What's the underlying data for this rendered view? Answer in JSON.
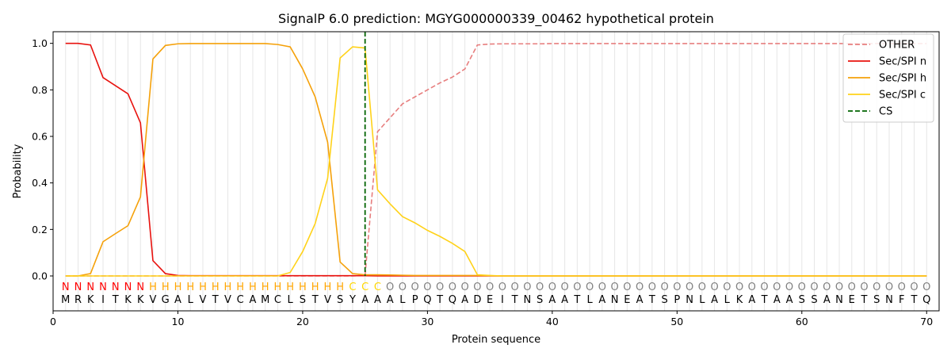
{
  "chart_data": {
    "type": "line",
    "title": "SignalP 6.0 prediction: MGYG000000339_00462 hypothetical protein",
    "xlabel": "Protein sequence",
    "ylabel": "Probability",
    "xlim": [
      0,
      71
    ],
    "ylim": [
      -0.15,
      1.05
    ],
    "x_ticks": [
      0,
      10,
      20,
      30,
      40,
      50,
      60,
      70
    ],
    "y_ticks": [
      0.0,
      0.2,
      0.4,
      0.6,
      0.8,
      1.0
    ],
    "y_tick_labels": [
      "0.0",
      "0.2",
      "0.4",
      "0.6",
      "0.8",
      "1.0"
    ],
    "sequence": "MRKITKKVGALVTVCAMCLSTVSYAAALPQTQADEITNSAATLANEATSPNLALKATAASSANETSNFTQ",
    "labels": "NNNNNNNHHHHHHHHHHHHHHHHCCCOOOOOOOOOOOOOOOOOOOOOOOOOOOOOOOOOOOOOOOOOOOOO",
    "label_colors": {
      "N": "#ff0000",
      "H": "#ffa500",
      "C": "#ffd700",
      "O": "#808080"
    },
    "cleavage_site": 25,
    "legend_position": "top-right",
    "grid": "vertical-lines",
    "series": [
      {
        "name": "OTHER",
        "color": "#e77e7e",
        "dash": "dashed",
        "values": [
          0,
          0,
          0,
          0,
          0,
          0,
          0,
          0,
          0,
          0,
          0,
          0,
          0,
          0,
          0,
          0,
          0,
          0,
          0,
          0,
          0,
          0,
          0,
          0,
          0.003,
          0.62,
          0.68,
          0.74,
          0.77,
          0.8,
          0.83,
          0.855,
          0.89,
          0.993,
          0.997,
          0.998,
          0.998,
          0.998,
          0.998,
          0.999,
          0.999,
          0.999,
          0.999,
          0.999,
          0.999,
          0.999,
          0.999,
          0.999,
          0.999,
          0.999,
          0.999,
          0.999,
          0.999,
          0.999,
          0.999,
          0.999,
          0.999,
          0.999,
          0.999,
          0.999,
          0.999,
          0.999,
          0.999,
          0.999,
          0.999,
          0.999,
          0.999,
          0.999,
          0.999,
          0.999
        ]
      },
      {
        "name": "Sec/SPI n",
        "color": "#e8120e",
        "dash": "solid",
        "values": [
          1.0,
          1.0,
          0.993,
          0.853,
          0.818,
          0.783,
          0.658,
          0.066,
          0.01,
          0.002,
          0.001,
          0.001,
          0.001,
          0.001,
          0.001,
          0.001,
          0.001,
          0.001,
          0.001,
          0.001,
          0.001,
          0.001,
          0.001,
          0.001,
          0.001,
          0,
          0,
          0,
          0,
          0,
          0,
          0,
          0,
          0,
          0,
          0,
          0,
          0,
          0,
          0,
          0,
          0,
          0,
          0,
          0,
          0,
          0,
          0,
          0,
          0,
          0,
          0,
          0,
          0,
          0,
          0,
          0,
          0,
          0,
          0,
          0,
          0,
          0,
          0,
          0,
          0,
          0,
          0,
          0,
          0
        ]
      },
      {
        "name": "Sec/SPI h",
        "color": "#f5a10a",
        "dash": "solid",
        "values": [
          0,
          0,
          0.01,
          0.147,
          0.182,
          0.216,
          0.34,
          0.933,
          0.991,
          0.998,
          0.999,
          0.999,
          0.999,
          0.999,
          0.999,
          0.999,
          0.999,
          0.995,
          0.985,
          0.89,
          0.77,
          0.575,
          0.06,
          0.01,
          0.005,
          0.005,
          0.004,
          0.003,
          0.002,
          0.002,
          0.002,
          0.002,
          0.002,
          0.002,
          0.001,
          0,
          0,
          0,
          0,
          0,
          0,
          0,
          0,
          0,
          0,
          0,
          0,
          0,
          0,
          0,
          0,
          0,
          0,
          0,
          0,
          0,
          0,
          0,
          0,
          0,
          0,
          0,
          0,
          0,
          0,
          0,
          0,
          0,
          0,
          0
        ]
      },
      {
        "name": "Sec/SPI c",
        "color": "#ffd21a",
        "dash": "solid",
        "values": [
          0,
          0,
          0,
          0,
          0,
          0,
          0,
          0,
          0,
          0,
          0,
          0,
          0,
          0,
          0,
          0,
          0,
          0,
          0.015,
          0.105,
          0.225,
          0.42,
          0.937,
          0.985,
          0.98,
          0.37,
          0.31,
          0.255,
          0.228,
          0.196,
          0.17,
          0.14,
          0.105,
          0.005,
          0.002,
          0,
          0,
          0,
          0,
          0,
          0,
          0,
          0,
          0,
          0,
          0,
          0,
          0,
          0,
          0,
          0,
          0,
          0,
          0,
          0,
          0,
          0,
          0,
          0,
          0,
          0,
          0,
          0,
          0,
          0,
          0,
          0,
          0,
          0,
          0
        ]
      }
    ],
    "cs_legend": {
      "name": "CS",
      "color": "#006400",
      "dash": "dashed"
    }
  }
}
